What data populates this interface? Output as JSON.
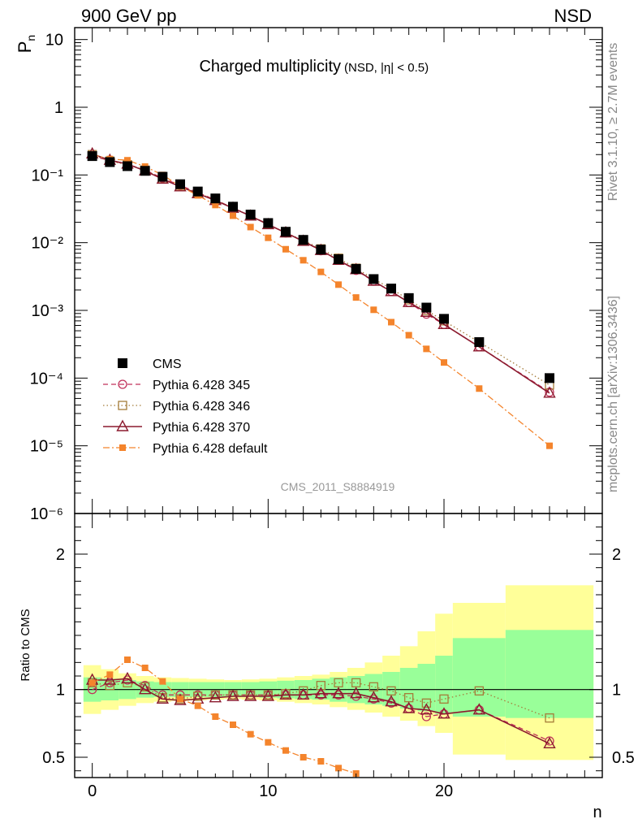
{
  "header": {
    "left": "900 GeV pp",
    "right": "NSD"
  },
  "side_labels": {
    "top": "Rivet 3.1.10, ≥ 2.7M events",
    "bottom": "mcplots.cern.ch [arXiv:1306.3436]"
  },
  "chart_data": [
    {
      "type": "scatter",
      "panel": "main",
      "title": "Charged multiplicity",
      "subtitle": "(NSD, |η| < 0.5)",
      "yscale": "log",
      "ylabel": "Pn",
      "xlabel": "n",
      "xlim": [
        -1,
        29
      ],
      "ylim": [
        1e-06,
        15
      ],
      "yticks": [
        {
          "value": 10,
          "label": "10"
        },
        {
          "value": 1,
          "label": "1"
        },
        {
          "value": 0.1,
          "label": "10⁻¹"
        },
        {
          "value": 0.01,
          "label": "10⁻²"
        },
        {
          "value": 0.001,
          "label": "10⁻³"
        },
        {
          "value": 0.0001,
          "label": "10⁻⁴"
        },
        {
          "value": 1e-05,
          "label": "10⁻⁵"
        },
        {
          "value": 1e-06,
          "label": "10⁻⁶"
        }
      ],
      "watermark": "CMS_2011_S8884919",
      "legend_position": "lower-left",
      "series": [
        {
          "name": "CMS",
          "color": "#000000",
          "marker": "filled-square",
          "line": "none",
          "x": [
            0,
            1,
            2,
            3,
            4,
            5,
            6,
            7,
            8,
            9,
            10,
            11,
            12,
            13,
            14,
            15,
            16,
            17,
            18,
            19,
            20,
            22,
            26
          ],
          "y": [
            0.19,
            0.155,
            0.135,
            0.115,
            0.094,
            0.073,
            0.057,
            0.045,
            0.034,
            0.026,
            0.0195,
            0.0145,
            0.011,
            0.0079,
            0.0057,
            0.0041,
            0.0029,
            0.0021,
            0.00152,
            0.0011,
            0.00075,
            0.00034,
            0.0001
          ]
        },
        {
          "name": "Pythia 6.428 345",
          "color": "#c0305a",
          "marker": "open-circle",
          "line": "dashed",
          "x": [
            0,
            1,
            2,
            3,
            4,
            5,
            6,
            7,
            8,
            9,
            10,
            11,
            12,
            13,
            14,
            15,
            16,
            17,
            18,
            19,
            20,
            22,
            26
          ],
          "y": [
            0.19,
            0.163,
            0.144,
            0.118,
            0.09,
            0.07,
            0.055,
            0.043,
            0.0326,
            0.025,
            0.0187,
            0.0139,
            0.0105,
            0.0076,
            0.0055,
            0.0039,
            0.0027,
            0.0019,
            0.00131,
            0.00088,
            0.00062,
            0.00029,
            6.2e-05
          ]
        },
        {
          "name": "Pythia 6.428 346",
          "color": "#a57c3a",
          "marker": "open-square",
          "line": "dotted",
          "x": [
            0,
            1,
            2,
            3,
            4,
            5,
            6,
            7,
            8,
            9,
            10,
            11,
            12,
            13,
            14,
            15,
            16,
            17,
            18,
            19,
            20,
            22,
            26
          ],
          "y": [
            0.2,
            0.16,
            0.142,
            0.118,
            0.088,
            0.068,
            0.054,
            0.043,
            0.0326,
            0.025,
            0.0187,
            0.014,
            0.0108,
            0.0081,
            0.0059,
            0.0042,
            0.0029,
            0.0021,
            0.00143,
            0.001,
            0.0007,
            0.00034,
            7.9e-05
          ]
        },
        {
          "name": "Pythia 6.428 370",
          "color": "#8b1a2e",
          "marker": "open-triangle",
          "line": "solid",
          "x": [
            0,
            1,
            2,
            3,
            4,
            5,
            6,
            7,
            8,
            9,
            10,
            11,
            12,
            13,
            14,
            15,
            16,
            17,
            18,
            19,
            20,
            22,
            26
          ],
          "y": [
            0.205,
            0.165,
            0.145,
            0.115,
            0.087,
            0.067,
            0.053,
            0.042,
            0.0323,
            0.0248,
            0.0185,
            0.014,
            0.0105,
            0.0077,
            0.0055,
            0.004,
            0.0027,
            0.0019,
            0.00131,
            0.00094,
            0.00062,
            0.00029,
            6e-05
          ]
        },
        {
          "name": "Pythia 6.428 default",
          "color": "#f4842c",
          "marker": "filled-square-small",
          "line": "dashdot",
          "x": [
            0,
            1,
            2,
            3,
            4,
            5,
            6,
            7,
            8,
            9,
            10,
            11,
            12,
            13,
            14,
            15,
            16,
            17,
            18,
            19,
            20,
            22,
            26
          ],
          "y": [
            0.2,
            0.172,
            0.165,
            0.133,
            0.1,
            0.068,
            0.05,
            0.036,
            0.025,
            0.017,
            0.0118,
            0.008,
            0.0055,
            0.0037,
            0.0024,
            0.00155,
            0.00102,
            0.00067,
            0.00043,
            0.00027,
            0.00017,
            7e-05,
            1e-05
          ]
        }
      ]
    },
    {
      "type": "scatter",
      "panel": "ratio",
      "ylabel": "Ratio to CMS",
      "xlabel": "n",
      "xlim": [
        -1,
        29
      ],
      "ylim": [
        0.35,
        2.3
      ],
      "yticks": [
        {
          "value": 0.5,
          "label": "0.5"
        },
        {
          "value": 1,
          "label": "1"
        },
        {
          "value": 2,
          "label": "2"
        }
      ],
      "xticks": [
        {
          "value": 0,
          "label": "0"
        },
        {
          "value": 10,
          "label": "10"
        },
        {
          "value": 20,
          "label": "20"
        }
      ],
      "uncertainty_bands": {
        "edges": [
          -0.5,
          0.5,
          1.5,
          2.5,
          3.5,
          4.5,
          5.5,
          6.5,
          7.5,
          8.5,
          9.5,
          10.5,
          11.5,
          12.5,
          13.5,
          14.5,
          15.5,
          16.5,
          17.5,
          18.5,
          19.5,
          20.5,
          23.5,
          28.5
        ],
        "inner_color": "#99ff99",
        "outer_color": "#ffff99",
        "inner_lo": [
          0.91,
          0.92,
          0.93,
          0.94,
          0.945,
          0.945,
          0.945,
          0.945,
          0.945,
          0.945,
          0.94,
          0.935,
          0.93,
          0.925,
          0.91,
          0.9,
          0.89,
          0.88,
          0.86,
          0.84,
          0.82,
          0.8,
          0.79
        ],
        "inner_hi": [
          1.09,
          1.08,
          1.07,
          1.06,
          1.055,
          1.055,
          1.055,
          1.055,
          1.055,
          1.055,
          1.06,
          1.065,
          1.07,
          1.08,
          1.09,
          1.1,
          1.115,
          1.13,
          1.16,
          1.19,
          1.25,
          1.38,
          1.44
        ],
        "outer_lo": [
          0.82,
          0.85,
          0.88,
          0.9,
          0.91,
          0.915,
          0.92,
          0.925,
          0.93,
          0.925,
          0.92,
          0.91,
          0.9,
          0.89,
          0.87,
          0.85,
          0.83,
          0.8,
          0.77,
          0.73,
          0.68,
          0.52,
          0.48
        ],
        "outer_hi": [
          1.18,
          1.15,
          1.12,
          1.1,
          1.09,
          1.085,
          1.08,
          1.075,
          1.07,
          1.075,
          1.08,
          1.09,
          1.1,
          1.11,
          1.13,
          1.16,
          1.2,
          1.25,
          1.32,
          1.43,
          1.56,
          1.64,
          1.77
        ]
      },
      "reference_line": 1,
      "series": [
        {
          "name": "Pythia 6.428 345",
          "color": "#c0305a",
          "marker": "open-circle",
          "line": "dashed",
          "x": [
            0,
            1,
            2,
            3,
            4,
            5,
            6,
            7,
            8,
            9,
            10,
            11,
            12,
            13,
            14,
            15,
            16,
            17,
            18,
            19,
            20,
            22,
            26
          ],
          "y": [
            1.0,
            1.05,
            1.07,
            1.03,
            0.96,
            0.96,
            0.96,
            0.96,
            0.96,
            0.96,
            0.96,
            0.96,
            0.96,
            0.96,
            0.96,
            0.95,
            0.93,
            0.9,
            0.86,
            0.8,
            0.82,
            0.85,
            0.62
          ]
        },
        {
          "name": "Pythia 6.428 346",
          "color": "#a57c3a",
          "marker": "open-square",
          "line": "dotted",
          "x": [
            0,
            1,
            2,
            3,
            4,
            5,
            6,
            7,
            8,
            9,
            10,
            11,
            12,
            13,
            14,
            15,
            16,
            17,
            18,
            19,
            20,
            22,
            26
          ],
          "y": [
            1.05,
            1.03,
            1.05,
            1.02,
            0.94,
            0.93,
            0.95,
            0.96,
            0.96,
            0.96,
            0.96,
            0.97,
            0.99,
            1.03,
            1.05,
            1.05,
            1.02,
            0.99,
            0.94,
            0.9,
            0.93,
            0.99,
            0.79
          ]
        },
        {
          "name": "Pythia 6.428 370",
          "color": "#8b1a2e",
          "marker": "open-triangle",
          "line": "solid",
          "x": [
            0,
            1,
            2,
            3,
            4,
            5,
            6,
            7,
            8,
            9,
            10,
            11,
            12,
            13,
            14,
            15,
            16,
            17,
            18,
            19,
            20,
            22,
            26
          ],
          "y": [
            1.07,
            1.07,
            1.08,
            1.0,
            0.93,
            0.92,
            0.93,
            0.94,
            0.95,
            0.95,
            0.95,
            0.96,
            0.96,
            0.97,
            0.97,
            0.97,
            0.94,
            0.91,
            0.86,
            0.85,
            0.82,
            0.85,
            0.6
          ]
        },
        {
          "name": "Pythia 6.428 default",
          "color": "#f4842c",
          "marker": "filled-square-small",
          "line": "dashdot",
          "x": [
            0,
            1,
            2,
            3,
            4,
            5,
            6,
            7,
            8,
            9,
            10,
            11,
            12,
            13,
            14,
            15
          ],
          "y": [
            1.05,
            1.11,
            1.22,
            1.16,
            1.06,
            0.93,
            0.88,
            0.8,
            0.74,
            0.67,
            0.61,
            0.55,
            0.5,
            0.47,
            0.42,
            0.38
          ]
        }
      ]
    }
  ]
}
